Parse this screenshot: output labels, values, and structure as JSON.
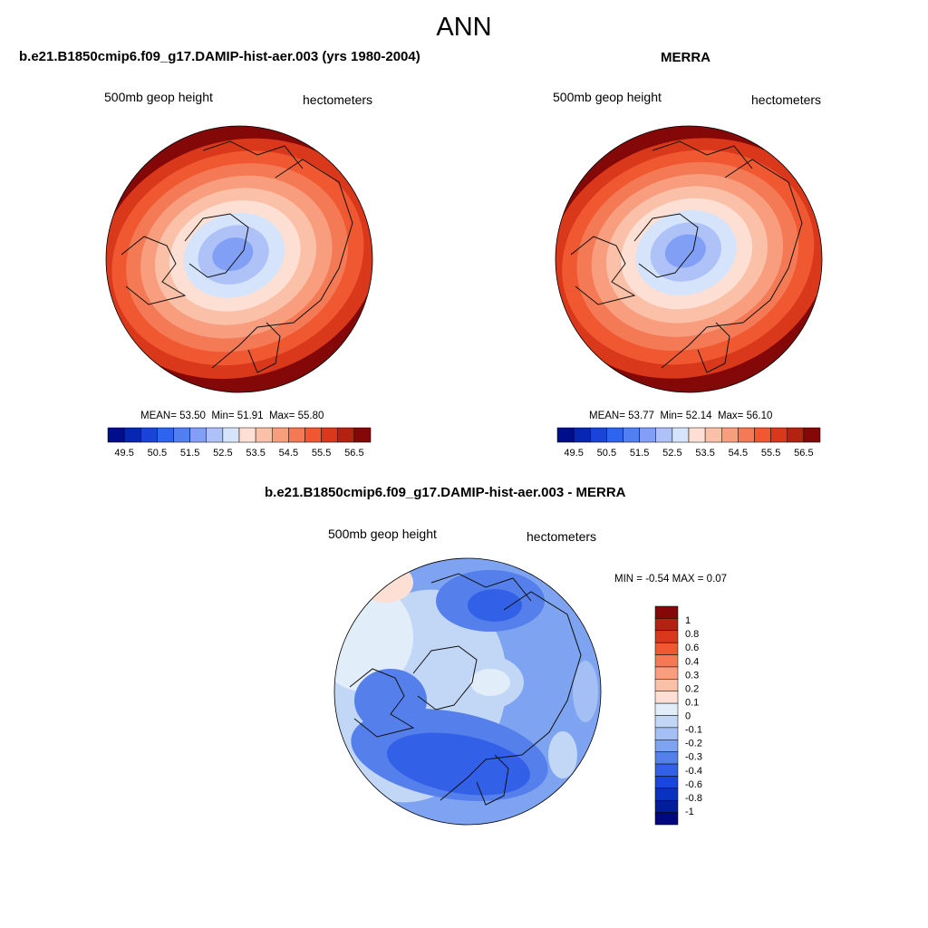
{
  "page_title": "ANN",
  "colors": {
    "top_scale": [
      "#000e8c",
      "#0627b3",
      "#1a44d9",
      "#2e64f0",
      "#527ff2",
      "#819ff5",
      "#aec2f8",
      "#d5e4fb",
      "#fde0d3",
      "#fbc0a8",
      "#f89d7e",
      "#f47a55",
      "#ef5830",
      "#d9381b",
      "#b42212",
      "#850808"
    ],
    "diff_scale": [
      "#850808",
      "#b42212",
      "#d9381b",
      "#ef5830",
      "#f47a55",
      "#f89d7e",
      "#fbc0a8",
      "#fde0d3",
      "#e2edfa",
      "#c2d6f6",
      "#a3bff3",
      "#7ea3f0",
      "#5580ec",
      "#3260e7",
      "#1a46dd",
      "#0a32c2",
      "#031c99",
      "#00087a"
    ],
    "coast": "#111111"
  },
  "panels": {
    "model": {
      "title": "b.e21.B1850cmip6.f09_g17.DAMIP-hist-aer.003 (yrs 1980-2004)",
      "variable": "500mb geop height",
      "units": "hectometers",
      "stats": {
        "mean_label": "MEAN=",
        "mean": "53.50",
        "min_label": "Min=",
        "min": "51.91",
        "max_label": "Max=",
        "max": "55.80"
      }
    },
    "obs": {
      "title": "MERRA",
      "variable": "500mb geop height",
      "units": "hectometers",
      "stats": {
        "mean_label": "MEAN=",
        "mean": "53.77",
        "min_label": "Min=",
        "min": "52.14",
        "max_label": "Max=",
        "max": "56.10"
      }
    },
    "diff": {
      "title": "b.e21.B1850cmip6.f09_g17.DAMIP-hist-aer.003 - MERRA",
      "variable": "500mb geop height",
      "units": "hectometers",
      "minmax": {
        "min_label": "MIN =",
        "min": "-0.54",
        "max_label": "MAX =",
        "max": "0.07"
      }
    }
  },
  "colorbar_top": {
    "labels": [
      "49.5",
      "50.5",
      "51.5",
      "52.5",
      "53.5",
      "54.5",
      "55.5",
      "56.5"
    ]
  },
  "colorbar_diff": {
    "labels": [
      "1",
      "0.8",
      "0.6",
      "0.4",
      "0.3",
      "0.2",
      "0.1",
      "0",
      "-0.1",
      "-0.2",
      "-0.3",
      "-0.4",
      "-0.6",
      "-0.8",
      "-1"
    ]
  }
}
